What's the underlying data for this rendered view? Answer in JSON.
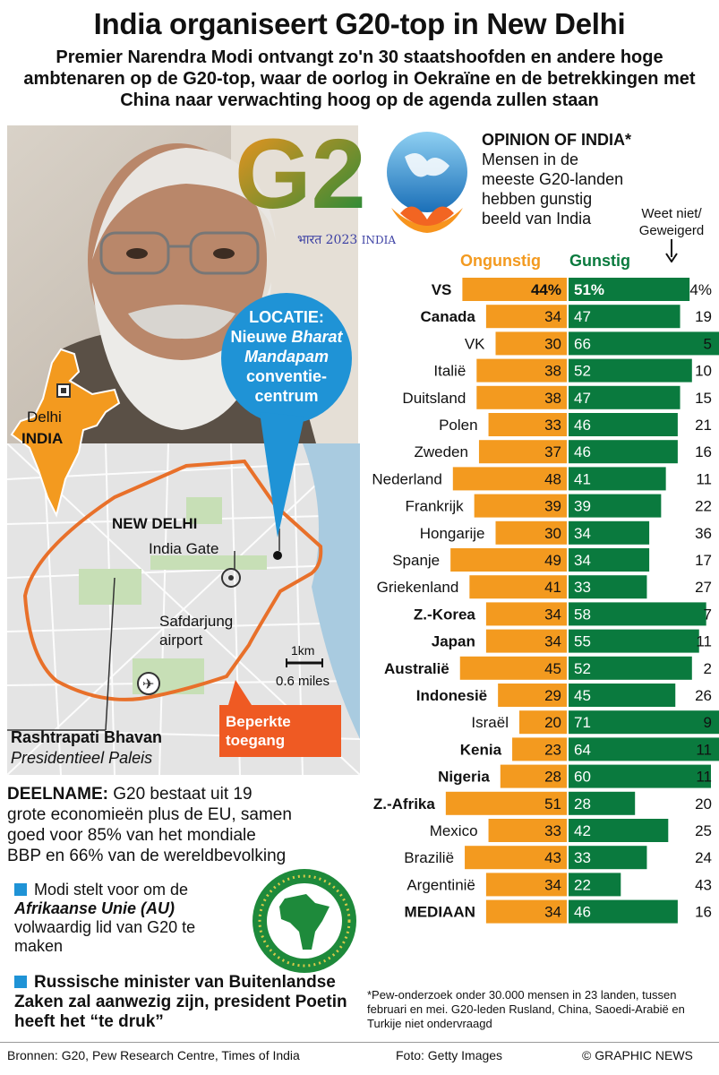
{
  "header": {
    "title": "India organiseert G20-top in New Delhi",
    "subtitle": "Premier Narendra Modi ontvangt zo'n 30 staatshoofden en andere hoge ambtenaren op de G20-top, waar de oorlog in Oekraïne en de betrekkingen met China naar verwachting hoog op de agenda zullen staan"
  },
  "logo": {
    "text": "G20",
    "tagline_script": "भारत",
    "tagline_year": "2023",
    "tagline_country": "INDIA"
  },
  "map": {
    "delhi_label": "Delhi",
    "india_label": "INDIA",
    "locatie_title": "LOCATIE:",
    "locatie_l1": "Nieuwe",
    "locatie_l1_it": "Bharat",
    "locatie_l2_it": "Mandapam",
    "locatie_l3": "conventie-",
    "locatie_l4": "centrum",
    "new_delhi": "NEW DELHI",
    "india_gate": "India Gate",
    "airport_l1": "Safdarjung",
    "airport_l2": "airport",
    "scale_km": "1km",
    "scale_mi": "0.6 miles",
    "restricted_l1": "Beperkte",
    "restricted_l2": "toegang",
    "palace_name": "Rashtrapati Bhavan",
    "palace_sub": "Presidentieel Paleis"
  },
  "chart_header": {
    "title": "OPINION OF INDIA*",
    "subtitle": "Mensen in de meeste G20-landen hebben gunstig beeld van India",
    "dk_label_l1": "Weet niet/",
    "dk_label_l2": "Geweigerd",
    "legend_unfavorable": "Ongunstig",
    "legend_favorable": "Gunstig"
  },
  "chart_data": {
    "type": "bar",
    "title": "OPINION OF INDIA*",
    "categories": [
      "VS",
      "Canada",
      "VK",
      "Italië",
      "Duitsland",
      "Polen",
      "Zweden",
      "Nederland",
      "Frankrijk",
      "Hongarije",
      "Spanje",
      "Griekenland",
      "Z.-Korea",
      "Japan",
      "Australië",
      "Indonesië",
      "Israël",
      "Kenia",
      "Nigeria",
      "Z.-Afrika",
      "Mexico",
      "Brazilië",
      "Argentinië",
      "MEDIAAN"
    ],
    "bold": [
      true,
      true,
      false,
      false,
      false,
      false,
      false,
      false,
      false,
      false,
      false,
      false,
      true,
      true,
      true,
      true,
      false,
      true,
      true,
      true,
      false,
      false,
      false,
      true
    ],
    "series": [
      {
        "name": "Ongunstig",
        "color": "#f39a1f",
        "values": [
          44,
          34,
          30,
          38,
          38,
          33,
          37,
          48,
          39,
          30,
          49,
          41,
          34,
          34,
          45,
          29,
          20,
          23,
          28,
          51,
          33,
          43,
          34,
          34
        ]
      },
      {
        "name": "Gunstig",
        "color": "#0a7a3e",
        "values": [
          51,
          47,
          66,
          52,
          47,
          46,
          46,
          41,
          39,
          34,
          34,
          33,
          58,
          55,
          52,
          45,
          71,
          64,
          60,
          28,
          42,
          33,
          22,
          46
        ]
      },
      {
        "name": "Weet niet/Geweigerd",
        "values": [
          4,
          19,
          5,
          10,
          15,
          21,
          16,
          11,
          22,
          36,
          17,
          27,
          7,
          11,
          2,
          26,
          9,
          11,
          11,
          20,
          25,
          24,
          43,
          16
        ]
      }
    ],
    "first_row_suffix": "%"
  },
  "left_text": {
    "deel_label": "DEELNAME:",
    "deel_text": " G20 bestaat uit 19 grote economieën plus de EU, samen goed voor 85% van het mondiale BBP en 66% van de wereldbevolking",
    "bullet1_a": "Modi stelt voor om de ",
    "bullet1_b": "Afrikaanse Unie (AU)",
    "bullet1_c": " volwaardig lid van G20 te maken",
    "bullet2": "Russische minister van Buitenlandse Zaken zal aanwezig zijn, president Poetin heeft het “te druk”"
  },
  "footnote": "*Pew-onderzoek onder 30.000 mensen in 23 landen, tussen februari en mei. G20-leden Rusland, China, Saoedi-Arabië en Turkije niet ondervraagd",
  "footer": {
    "sources": "Bronnen: G20, Pew Research Centre, Times of India",
    "photo": "Foto: Getty Images",
    "credit": "© GRAPHIC NEWS"
  }
}
